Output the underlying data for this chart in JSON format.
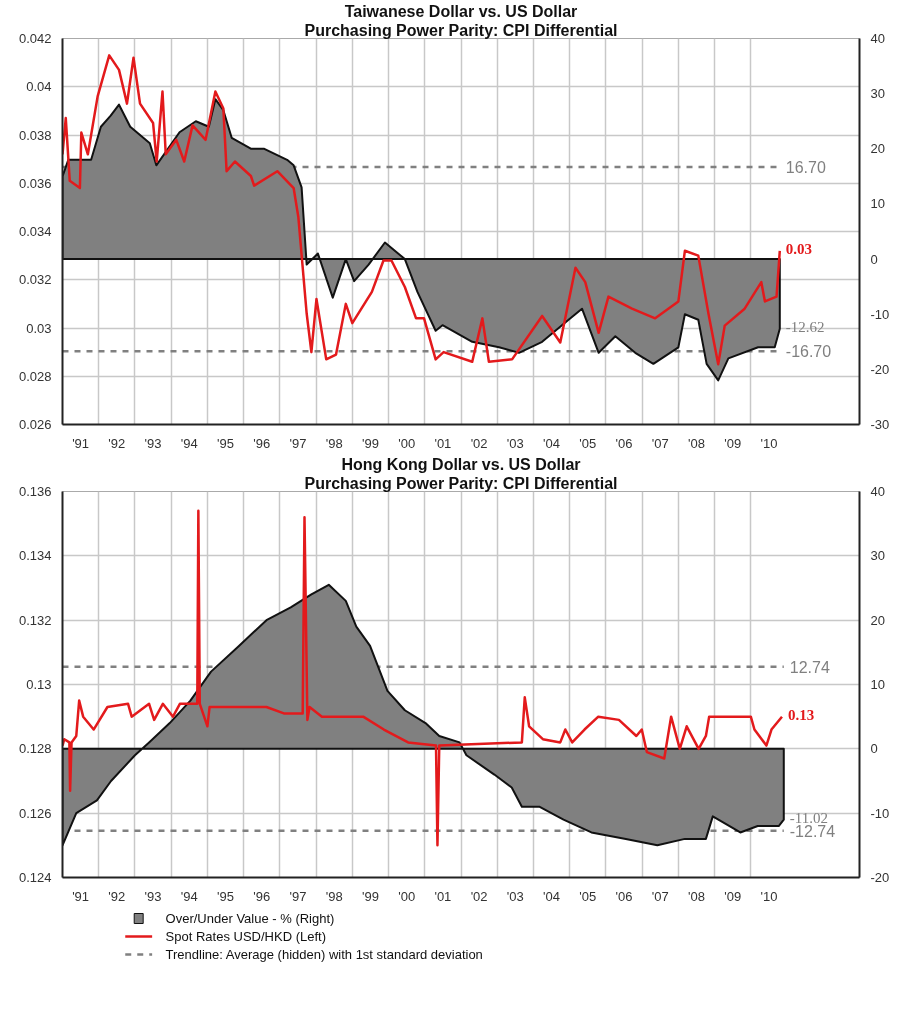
{
  "chart_data": [
    {
      "type": "line",
      "title": "Taiwanese Dollar vs. US Dollar",
      "subtitle": "Purchasing Power Parity: CPI Differential",
      "xlim": [
        1990.5,
        2012.5
      ],
      "ylim": [
        0.026,
        0.042
      ],
      "yticks": [
        0.026,
        0.028,
        0.03,
        0.032,
        0.034,
        0.036,
        0.038,
        0.04,
        0.042
      ],
      "y2lim": [
        -30,
        40
      ],
      "y2ticks": [
        -30,
        -20,
        -10,
        0,
        10,
        20,
        30,
        40
      ],
      "xticks": [
        {
          "value": 1991,
          "label": "'91"
        },
        {
          "value": 1991.5,
          "label": null
        },
        {
          "value": 1992,
          "label": "'92"
        },
        {
          "value": 1992.5,
          "label": null
        },
        {
          "value": 1993,
          "label": "'93"
        },
        {
          "value": 1993.5,
          "label": null
        },
        {
          "value": 1994,
          "label": "'94"
        },
        {
          "value": 1994.5,
          "label": null
        },
        {
          "value": 1995,
          "label": "'95"
        },
        {
          "value": 1995.5,
          "label": null
        },
        {
          "value": 1996,
          "label": "'96"
        },
        {
          "value": 1996.5,
          "label": null
        },
        {
          "value": 1997,
          "label": "'97"
        },
        {
          "value": 1997.5,
          "label": null
        },
        {
          "value": 1998,
          "label": "'98"
        },
        {
          "value": 1998.5,
          "label": null
        },
        {
          "value": 1999,
          "label": "'99"
        },
        {
          "value": 1999.5,
          "label": null
        },
        {
          "value": 2000,
          "label": "'00"
        },
        {
          "value": 2000.5,
          "label": null
        },
        {
          "value": 2001,
          "label": "'01"
        },
        {
          "value": 2001.5,
          "label": null
        },
        {
          "value": 2002,
          "label": "'02"
        },
        {
          "value": 2002.5,
          "label": null
        },
        {
          "value": 2003,
          "label": "'03"
        },
        {
          "value": 2003.5,
          "label": null
        },
        {
          "value": 2004,
          "label": "'04"
        },
        {
          "value": 2004.5,
          "label": null
        },
        {
          "value": 2005,
          "label": "'05"
        },
        {
          "value": 2005.5,
          "label": null
        },
        {
          "value": 2006,
          "label": "'06"
        },
        {
          "value": 2006.5,
          "label": null
        },
        {
          "value": 2007,
          "label": "'07"
        },
        {
          "value": 2007.5,
          "label": null
        },
        {
          "value": 2008,
          "label": "'08"
        },
        {
          "value": 2008.5,
          "label": null
        },
        {
          "value": 2009,
          "label": "'09"
        },
        {
          "value": 2009.5,
          "label": null
        },
        {
          "value": 2010,
          "label": "'10"
        }
      ],
      "grid": true,
      "series": [
        {
          "type": "area",
          "axis": "y2",
          "color": "#808080",
          "x": [
            1990.5,
            1990.66,
            1991.29,
            1991.56,
            1991.83,
            1992.06,
            1992.37,
            1992.91,
            1993.09,
            1993.73,
            1994.18,
            1994.54,
            1994.72,
            1994.94,
            1995.17,
            1995.71,
            1996.07,
            1996.7,
            1996.88,
            1997.1,
            1997.24,
            1997.55,
            1997.96,
            1998.32,
            1998.55,
            1998.95,
            1999.4,
            1999.95,
            2000.3,
            2000.8,
            2000.99,
            2001.81,
            2002.55,
            2003.1,
            2003.74,
            2004.47,
            2004.84,
            2005.3,
            2005.76,
            2006.31,
            2006.81,
            2007.5,
            2007.68,
            2008.05,
            2008.28,
            2008.6,
            2008.88,
            2009.7,
            2010.16,
            2010.3
          ],
          "values": [
            15,
            18,
            18,
            24,
            26,
            28,
            24,
            21,
            17,
            23,
            25,
            24,
            29,
            27,
            22,
            20,
            20,
            18,
            17,
            13,
            -1,
            1,
            -7,
            0,
            -4,
            -1,
            3,
            0,
            -6,
            -13,
            -12,
            -15,
            -16,
            -17,
            -15,
            -11,
            -9,
            -17,
            -14,
            -17,
            -19,
            -16,
            -10,
            -11,
            -19,
            -22,
            -18,
            -16,
            -16,
            -12.62
          ],
          "value_labels": [
            null,
            null,
            null,
            null,
            null,
            null,
            null,
            null,
            null,
            null,
            null,
            null,
            null,
            null,
            null,
            null,
            null,
            null,
            null,
            null,
            null,
            null,
            null,
            null,
            null,
            null,
            null,
            null,
            null,
            null,
            null,
            null,
            null,
            null,
            null,
            null,
            null,
            null,
            null,
            null,
            null,
            null,
            null,
            null,
            null,
            null,
            null,
            null,
            null,
            "-12.62"
          ]
        },
        {
          "type": "line",
          "color": "#e31a1c",
          "x": [
            1990.5,
            1990.59,
            1990.7,
            1990.98,
            1991.02,
            1991.2,
            1991.47,
            1991.79,
            1992.06,
            1992.28,
            1992.46,
            1992.64,
            1993.0,
            1993.1,
            1993.26,
            1993.35,
            1993.64,
            1993.86,
            1994.09,
            1994.45,
            1994.72,
            1994.94,
            1995.03,
            1995.26,
            1995.7,
            1995.79,
            1996.43,
            1996.88,
            1997.01,
            1997.24,
            1997.37,
            1997.51,
            1997.78,
            1998.05,
            1998.32,
            1998.5,
            1999.04,
            1999.36,
            1999.58,
            1999.95,
            2000.26,
            2000.48,
            2000.8,
            2001.02,
            2001.81,
            2002.09,
            2002.27,
            2002.91,
            2003.74,
            2004.24,
            2004.66,
            2004.93,
            2005.3,
            2005.57,
            2006.22,
            2006.86,
            2007.5,
            2007.68,
            2008.05,
            2008.33,
            2008.6,
            2008.78,
            2009.33,
            2009.79,
            2009.89,
            2010.21,
            2010.3
          ],
          "values": [
            0.0372,
            0.0387,
            0.0361,
            0.0358,
            0.0381,
            0.0372,
            0.0396,
            0.0413,
            0.0407,
            0.0393,
            0.0412,
            0.0393,
            0.0385,
            0.0369,
            0.0398,
            0.0372,
            0.0378,
            0.0369,
            0.0384,
            0.0378,
            0.0398,
            0.0391,
            0.0365,
            0.0369,
            0.0363,
            0.0359,
            0.0365,
            0.0358,
            0.0346,
            0.0306,
            0.029,
            0.0312,
            0.0287,
            0.0289,
            0.031,
            0.0302,
            0.0315,
            0.0328,
            0.0328,
            0.0317,
            0.0304,
            0.0304,
            0.0287,
            0.029,
            0.0286,
            0.0304,
            0.0286,
            0.0287,
            0.0305,
            0.0294,
            0.0325,
            0.0319,
            0.0298,
            0.0313,
            0.0308,
            0.0304,
            0.0311,
            0.0332,
            0.033,
            0.0306,
            0.0285,
            0.0301,
            0.0308,
            0.0319,
            0.0311,
            0.0313,
            0.0332
          ],
          "value_labels": [
            null,
            null,
            null,
            null,
            null,
            null,
            null,
            null,
            null,
            null,
            null,
            null,
            null,
            null,
            null,
            null,
            null,
            null,
            null,
            null,
            null,
            null,
            null,
            null,
            null,
            null,
            null,
            null,
            null,
            null,
            null,
            null,
            null,
            null,
            null,
            null,
            null,
            null,
            null,
            null,
            null,
            null,
            null,
            null,
            null,
            null,
            null,
            null,
            null,
            null,
            null,
            null,
            null,
            null,
            null,
            null,
            null,
            null,
            null,
            null,
            null,
            null,
            null,
            null,
            null,
            null,
            "0.03"
          ]
        }
      ],
      "ref_lines": [
        {
          "axis": "y2",
          "value": 16.7,
          "label": "16.70",
          "color": "#808080",
          "line_style": "dashed"
        },
        {
          "axis": "y2",
          "value": -16.7,
          "label": "-16.70",
          "color": "#808080",
          "line_style": "dashed"
        }
      ]
    },
    {
      "type": "line",
      "title": "Hong Kong Dollar vs. US Dollar",
      "subtitle": "Purchasing Power Parity: CPI Differential",
      "xlim": [
        1990.5,
        2012.5
      ],
      "ylim": [
        0.124,
        0.136
      ],
      "yticks": [
        0.124,
        0.126,
        0.128,
        0.13,
        0.132,
        0.134,
        0.136
      ],
      "y2lim": [
        -20,
        40
      ],
      "y2ticks": [
        -20,
        -10,
        0,
        10,
        20,
        30,
        40
      ],
      "xticks": [
        {
          "value": 1991,
          "label": "'91"
        },
        {
          "value": 1991.5,
          "label": null
        },
        {
          "value": 1992,
          "label": "'92"
        },
        {
          "value": 1992.5,
          "label": null
        },
        {
          "value": 1993,
          "label": "'93"
        },
        {
          "value": 1993.5,
          "label": null
        },
        {
          "value": 1994,
          "label": "'94"
        },
        {
          "value": 1994.5,
          "label": null
        },
        {
          "value": 1995,
          "label": "'95"
        },
        {
          "value": 1995.5,
          "label": null
        },
        {
          "value": 1996,
          "label": "'96"
        },
        {
          "value": 1996.5,
          "label": null
        },
        {
          "value": 1997,
          "label": "'97"
        },
        {
          "value": 1997.5,
          "label": null
        },
        {
          "value": 1998,
          "label": "'98"
        },
        {
          "value": 1998.5,
          "label": null
        },
        {
          "value": 1999,
          "label": "'99"
        },
        {
          "value": 1999.5,
          "label": null
        },
        {
          "value": 2000,
          "label": "'00"
        },
        {
          "value": 2000.5,
          "label": null
        },
        {
          "value": 2001,
          "label": "'01"
        },
        {
          "value": 2001.5,
          "label": null
        },
        {
          "value": 2002,
          "label": "'02"
        },
        {
          "value": 2002.5,
          "label": null
        },
        {
          "value": 2003,
          "label": "'03"
        },
        {
          "value": 2003.5,
          "label": null
        },
        {
          "value": 2004,
          "label": "'04"
        },
        {
          "value": 2004.5,
          "label": null
        },
        {
          "value": 2005,
          "label": "'05"
        },
        {
          "value": 2005.5,
          "label": null
        },
        {
          "value": 2006,
          "label": "'06"
        },
        {
          "value": 2006.5,
          "label": null
        },
        {
          "value": 2007,
          "label": "'07"
        },
        {
          "value": 2007.5,
          "label": null
        },
        {
          "value": 2008,
          "label": "'08"
        },
        {
          "value": 2008.5,
          "label": null
        },
        {
          "value": 2009,
          "label": "'09"
        },
        {
          "value": 2009.5,
          "label": null
        },
        {
          "value": 2010,
          "label": "'10"
        }
      ],
      "grid": true,
      "legend": "bottom",
      "series": [
        {
          "type": "area",
          "axis": "y2",
          "name": "Over/Under Value - %  (Right)",
          "color": "#808080",
          "x": [
            1990.5,
            1990.88,
            1991.45,
            1991.84,
            1992.5,
            1992.89,
            1993.46,
            1994.03,
            1994.6,
            1995.37,
            1996.13,
            1996.8,
            1997.37,
            1997.85,
            1998.32,
            1998.61,
            1998.99,
            1999.47,
            1999.95,
            2000.52,
            2000.9,
            2001.46,
            2001.65,
            2002.42,
            2002.9,
            2003.18,
            2003.66,
            2004.33,
            2005.1,
            2006.05,
            2006.92,
            2007.68,
            2008.26,
            2008.45,
            2009.21,
            2009.69,
            2010.27,
            2010.41
          ],
          "values": [
            -15,
            -10,
            -8,
            -5,
            -1,
            1,
            4,
            7.5,
            12,
            16,
            20,
            22,
            24,
            25.5,
            23,
            19,
            16,
            9,
            6,
            4,
            2,
            1,
            -1,
            -4,
            -6,
            -9,
            -9,
            -11,
            -13,
            -14,
            -15,
            -14,
            -14,
            -10.5,
            -13,
            -12,
            -12,
            -11.02
          ],
          "value_labels": [
            null,
            null,
            null,
            null,
            null,
            null,
            null,
            null,
            null,
            null,
            null,
            null,
            null,
            null,
            null,
            null,
            null,
            null,
            null,
            null,
            null,
            null,
            null,
            null,
            null,
            null,
            null,
            null,
            null,
            null,
            null,
            null,
            null,
            null,
            null,
            null,
            null,
            "-11.02"
          ]
        },
        {
          "type": "line",
          "name": "Spot Rates USD/HKD  (Left)",
          "color": "#e31a1c",
          "x": [
            1990.5,
            1990.55,
            1990.69,
            1990.71,
            1990.75,
            1990.88,
            1990.96,
            1991.07,
            1991.36,
            1991.74,
            1992.31,
            1992.41,
            1992.89,
            1993.03,
            1993.27,
            1993.55,
            1993.74,
            1994.22,
            1994.25,
            1994.29,
            1994.5,
            1994.56,
            1996.13,
            1996.61,
            1997.13,
            1997.18,
            1997.26,
            1997.32,
            1997.66,
            1998.8,
            1999.37,
            2000.04,
            2000.81,
            2000.85,
            2000.9,
            2003.18,
            2003.26,
            2003.38,
            2003.76,
            2004.24,
            2004.38,
            2004.57,
            2004.91,
            2005.29,
            2005.86,
            2006.34,
            2006.49,
            2006.63,
            2007.11,
            2007.3,
            2007.54,
            2007.73,
            2008.06,
            2008.26,
            2008.35,
            2009.5,
            2009.6,
            2009.93,
            2010.07,
            2010.36
          ],
          "values": [
            0.1281,
            0.1283,
            0.1282,
            0.1267,
            0.1282,
            0.1284,
            0.1295,
            0.129,
            0.1286,
            0.1293,
            0.1294,
            0.129,
            0.1294,
            0.1289,
            0.1294,
            0.129,
            0.1294,
            0.1294,
            0.1354,
            0.1294,
            0.1287,
            0.1293,
            0.1293,
            0.1291,
            0.1291,
            0.1352,
            0.1289,
            0.1293,
            0.129,
            0.129,
            0.1286,
            0.1282,
            0.1281,
            0.125,
            0.1281,
            0.1282,
            0.1296,
            0.1287,
            0.1283,
            0.1282,
            0.1286,
            0.1282,
            0.1286,
            0.129,
            0.1289,
            0.1284,
            0.1286,
            0.1279,
            0.1277,
            0.129,
            0.128,
            0.1287,
            0.128,
            0.1284,
            0.129,
            0.129,
            0.1286,
            0.1281,
            0.1286,
            0.129
          ],
          "value_labels": [
            null,
            null,
            null,
            null,
            null,
            null,
            null,
            null,
            null,
            null,
            null,
            null,
            null,
            null,
            null,
            null,
            null,
            null,
            null,
            null,
            null,
            null,
            null,
            null,
            null,
            null,
            null,
            null,
            null,
            null,
            null,
            null,
            null,
            null,
            null,
            null,
            null,
            null,
            null,
            null,
            null,
            null,
            null,
            null,
            null,
            null,
            null,
            null,
            null,
            null,
            null,
            null,
            null,
            null,
            null,
            null,
            null,
            null,
            null,
            "0.13"
          ]
        }
      ],
      "ref_lines": [
        {
          "axis": "y2",
          "value": 12.74,
          "label": "12.74",
          "color": "#808080",
          "line_style": "dashed"
        },
        {
          "axis": "y2",
          "value": -12.74,
          "label": "-12.74",
          "color": "#808080",
          "line_style": "dashed"
        }
      ],
      "annotations": [
        "Trendline: Average (hidden) with 1st standard deviation"
      ]
    }
  ]
}
